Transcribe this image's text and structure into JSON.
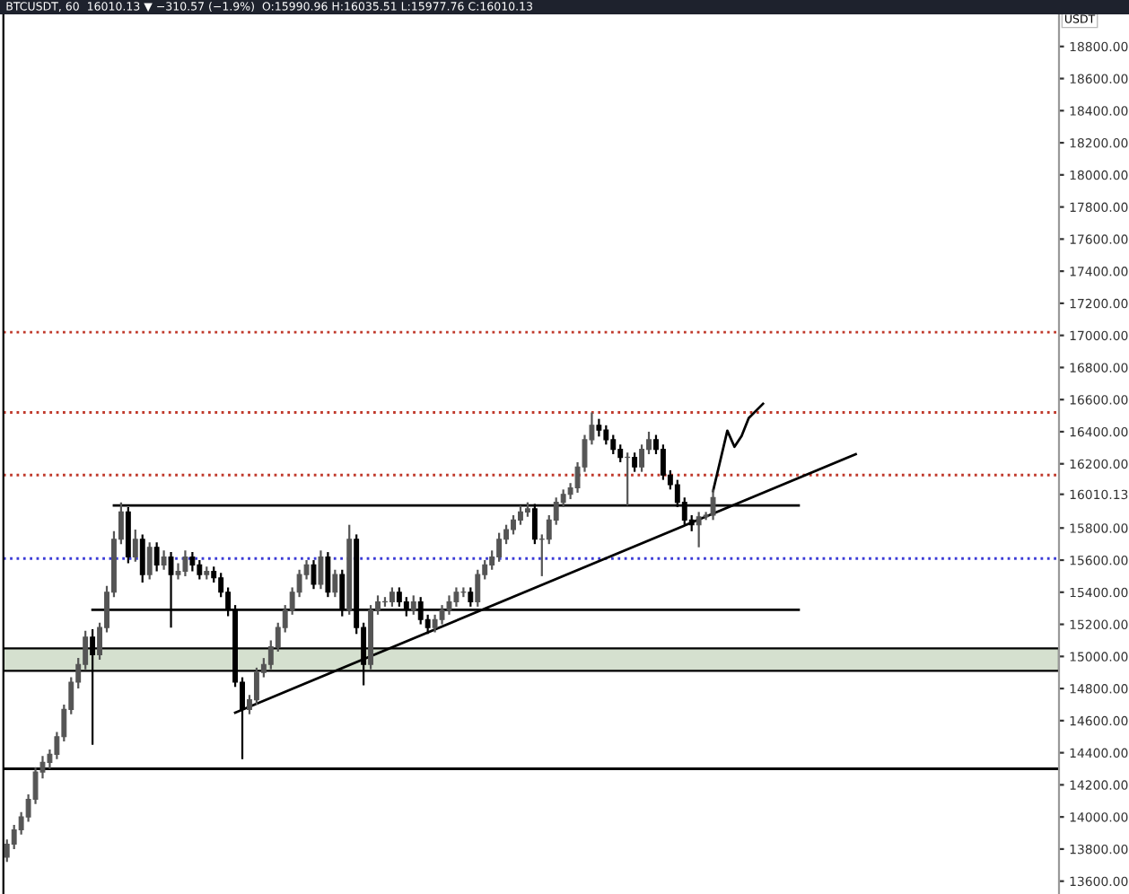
{
  "chart_data": {
    "type": "candlestick",
    "title": "BTCUSDT, 60  16010.13 ▼ −310.57 (−1.9%)  O:15990.96 H:16035.51 L:15977.76 C:16010.13",
    "ylabel": "USDT",
    "categories": [
      null,
      null,
      null,
      null,
      null,
      null,
      null,
      null,
      null,
      null,
      null,
      null,
      null,
      null,
      null,
      null,
      null,
      null,
      null,
      null,
      null,
      null,
      null,
      null,
      null,
      null,
      null,
      null,
      null,
      null,
      null,
      null,
      null,
      null,
      null,
      null,
      null,
      null,
      null,
      null,
      null,
      null,
      null,
      null,
      null,
      null,
      null,
      null,
      null,
      null,
      null,
      null,
      null,
      null,
      null,
      null,
      null,
      null,
      null,
      null,
      null,
      null,
      null,
      null,
      null,
      null,
      null,
      null,
      null,
      null,
      null,
      null,
      null,
      null,
      null,
      null,
      null,
      null,
      null,
      null,
      null,
      null,
      null,
      null,
      null,
      null,
      null,
      null,
      null,
      null,
      null,
      null,
      null,
      null,
      null,
      null,
      null,
      null,
      null,
      null,
      null,
      null,
      null,
      null,
      null,
      null,
      null,
      null,
      null,
      null,
      null,
      null,
      null,
      null,
      null,
      null,
      null,
      null,
      null,
      null,
      null,
      null,
      null,
      null,
      null,
      null,
      null,
      null,
      null,
      null,
      null,
      null,
      null,
      null,
      null,
      null,
      null,
      null,
      null,
      null,
      null,
      null,
      null,
      null,
      null,
      null,
      null,
      null
    ],
    "ohlc": [
      [
        13750,
        13860,
        13720,
        13830
      ],
      [
        13830,
        13950,
        13800,
        13920
      ],
      [
        13920,
        14030,
        13890,
        14000
      ],
      [
        14000,
        14140,
        13970,
        14110
      ],
      [
        14110,
        14310,
        14080,
        14280
      ],
      [
        14280,
        14380,
        14240,
        14340
      ],
      [
        14340,
        14420,
        14300,
        14390
      ],
      [
        14390,
        14530,
        14360,
        14500
      ],
      [
        14500,
        14700,
        14470,
        14670
      ],
      [
        14670,
        14870,
        14640,
        14840
      ],
      [
        14840,
        14990,
        14800,
        14950
      ],
      [
        14950,
        15160,
        14920,
        15120
      ],
      [
        15120,
        15170,
        14450,
        15010
      ],
      [
        15010,
        15210,
        14980,
        15180
      ],
      [
        15180,
        15440,
        15150,
        15400
      ],
      [
        15400,
        15780,
        15370,
        15730
      ],
      [
        15730,
        15960,
        15700,
        15900
      ],
      [
        15900,
        15930,
        15580,
        15620
      ],
      [
        15620,
        15790,
        15590,
        15730
      ],
      [
        15730,
        15760,
        15460,
        15510
      ],
      [
        15510,
        15710,
        15480,
        15680
      ],
      [
        15680,
        15710,
        15530,
        15570
      ],
      [
        15570,
        15660,
        15540,
        15620
      ],
      [
        15620,
        15650,
        15180,
        15510
      ],
      [
        15510,
        15580,
        15480,
        15530
      ],
      [
        15530,
        15660,
        15500,
        15620
      ],
      [
        15620,
        15650,
        15530,
        15570
      ],
      [
        15570,
        15600,
        15480,
        15510
      ],
      [
        15510,
        15560,
        15480,
        15530
      ],
      [
        15530,
        15560,
        15460,
        15490
      ],
      [
        15490,
        15520,
        15370,
        15400
      ],
      [
        15400,
        15430,
        15250,
        15290
      ],
      [
        15290,
        15320,
        14810,
        14840
      ],
      [
        14840,
        14870,
        14360,
        14670
      ],
      [
        14670,
        14760,
        14640,
        14730
      ],
      [
        14730,
        14930,
        14700,
        14900
      ],
      [
        14900,
        14990,
        14870,
        14950
      ],
      [
        14950,
        15100,
        14920,
        15060
      ],
      [
        15060,
        15210,
        15030,
        15180
      ],
      [
        15180,
        15320,
        15150,
        15290
      ],
      [
        15290,
        15430,
        15260,
        15400
      ],
      [
        15400,
        15540,
        15370,
        15510
      ],
      [
        15510,
        15600,
        15480,
        15570
      ],
      [
        15570,
        15600,
        15420,
        15450
      ],
      [
        15450,
        15660,
        15420,
        15620
      ],
      [
        15620,
        15650,
        15370,
        15400
      ],
      [
        15400,
        15540,
        15370,
        15510
      ],
      [
        15510,
        15540,
        15250,
        15290
      ],
      [
        15290,
        15820,
        15260,
        15730
      ],
      [
        15730,
        15760,
        15140,
        15180
      ],
      [
        15180,
        15210,
        14820,
        14950
      ],
      [
        14950,
        15320,
        14920,
        15290
      ],
      [
        15290,
        15380,
        15260,
        15340
      ],
      [
        15340,
        15370,
        15310,
        15340
      ],
      [
        15340,
        15430,
        15310,
        15400
      ],
      [
        15400,
        15430,
        15310,
        15340
      ],
      [
        15340,
        15370,
        15250,
        15290
      ],
      [
        15290,
        15380,
        15260,
        15340
      ],
      [
        15340,
        15370,
        15200,
        15230
      ],
      [
        15230,
        15260,
        15140,
        15180
      ],
      [
        15180,
        15260,
        15150,
        15230
      ],
      [
        15230,
        15320,
        15200,
        15290
      ],
      [
        15290,
        15380,
        15260,
        15340
      ],
      [
        15340,
        15430,
        15310,
        15400
      ],
      [
        15400,
        15430,
        15370,
        15400
      ],
      [
        15400,
        15430,
        15310,
        15340
      ],
      [
        15340,
        15540,
        15310,
        15510
      ],
      [
        15510,
        15600,
        15480,
        15570
      ],
      [
        15570,
        15660,
        15540,
        15620
      ],
      [
        15620,
        15770,
        15590,
        15730
      ],
      [
        15730,
        15820,
        15700,
        15790
      ],
      [
        15790,
        15880,
        15760,
        15850
      ],
      [
        15850,
        15940,
        15820,
        15900
      ],
      [
        15900,
        15960,
        15870,
        15920
      ],
      [
        15920,
        15950,
        15700,
        15730
      ],
      [
        15730,
        15760,
        15500,
        15730
      ],
      [
        15730,
        15880,
        15700,
        15850
      ],
      [
        15850,
        15990,
        15820,
        15960
      ],
      [
        15960,
        16040,
        15930,
        16010
      ],
      [
        16010,
        16080,
        15980,
        16050
      ],
      [
        16050,
        16210,
        16020,
        16180
      ],
      [
        16180,
        16380,
        16150,
        16350
      ],
      [
        16350,
        16520,
        16320,
        16440
      ],
      [
        16440,
        16480,
        16370,
        16410
      ],
      [
        16410,
        16440,
        16320,
        16350
      ],
      [
        16350,
        16380,
        16260,
        16290
      ],
      [
        16290,
        16320,
        16210,
        16240
      ],
      [
        16240,
        16270,
        15940,
        16240
      ],
      [
        16240,
        16270,
        16150,
        16180
      ],
      [
        16180,
        16320,
        16150,
        16290
      ],
      [
        16290,
        16400,
        16260,
        16350
      ],
      [
        16350,
        16380,
        16260,
        16290
      ],
      [
        16290,
        16320,
        16100,
        16130
      ],
      [
        16130,
        16160,
        16040,
        16070
      ],
      [
        16070,
        16100,
        15930,
        15960
      ],
      [
        15960,
        15990,
        15820,
        15850
      ],
      [
        15850,
        15880,
        15780,
        15820
      ],
      [
        15820,
        15900,
        15680,
        15870
      ],
      [
        15870,
        15900,
        15850,
        15880
      ],
      [
        15880,
        16040,
        15850,
        15990
      ],
      null,
      null,
      null,
      null,
      null,
      null,
      null,
      null,
      null,
      null,
      null,
      null,
      null,
      null,
      null,
      null,
      null,
      null,
      null,
      null,
      null,
      null,
      null,
      null,
      null,
      null,
      null,
      null,
      null,
      null,
      null,
      null,
      null,
      null,
      null,
      null,
      null,
      null,
      null,
      null,
      null,
      null,
      null,
      null,
      null,
      null,
      null,
      null
    ],
    "series": [
      {
        "type": "line",
        "color": "#000000",
        "values": [
          null,
          null,
          null,
          null,
          null,
          null,
          null,
          null,
          null,
          null,
          null,
          null,
          null,
          null,
          null,
          null,
          null,
          null,
          null,
          null,
          null,
          null,
          null,
          null,
          null,
          null,
          null,
          null,
          null,
          null,
          null,
          null,
          14650,
          null,
          null,
          null,
          null,
          null,
          null,
          null,
          null,
          null,
          null,
          null,
          null,
          null,
          null,
          null,
          null,
          null,
          null,
          null,
          null,
          null,
          null,
          null,
          null,
          null,
          null,
          null,
          null,
          null,
          null,
          null,
          null,
          null,
          null,
          null,
          null,
          null,
          null,
          null,
          null,
          null,
          null,
          null,
          null,
          null,
          null,
          null,
          null,
          null,
          null,
          null,
          null,
          null,
          null,
          null,
          null,
          null,
          null,
          null,
          null,
          null,
          null,
          null,
          null,
          null,
          null,
          null,
          null,
          null,
          null,
          null,
          null,
          null,
          null,
          null,
          null,
          null,
          null,
          null,
          null,
          null,
          null,
          null,
          null,
          null,
          null,
          16260,
          null,
          null,
          null,
          null,
          null,
          null,
          null,
          null,
          null,
          null,
          null,
          null,
          null,
          null,
          null,
          null,
          null,
          null,
          null,
          null,
          null,
          null,
          null,
          null,
          null,
          null,
          null,
          null
        ]
      },
      {
        "type": "line",
        "color": "#000000",
        "values": [
          null,
          null,
          null,
          null,
          null,
          null,
          null,
          null,
          null,
          null,
          null,
          null,
          null,
          null,
          null,
          null,
          null,
          null,
          null,
          null,
          null,
          null,
          null,
          null,
          null,
          null,
          null,
          null,
          null,
          null,
          null,
          null,
          null,
          null,
          null,
          null,
          null,
          null,
          null,
          null,
          null,
          null,
          null,
          null,
          null,
          null,
          null,
          null,
          null,
          null,
          null,
          null,
          null,
          null,
          null,
          null,
          null,
          null,
          null,
          null,
          null,
          null,
          null,
          null,
          null,
          null,
          null,
          null,
          null,
          null,
          null,
          null,
          null,
          null,
          null,
          null,
          null,
          null,
          null,
          null,
          null,
          null,
          null,
          null,
          null,
          null,
          null,
          null,
          null,
          null,
          null,
          null,
          null,
          null,
          null,
          null,
          null,
          null,
          null,
          16030,
          null,
          16406,
          16306,
          16373,
          16485,
          null,
          16574,
          null,
          null,
          null,
          null,
          null,
          null,
          null,
          null,
          null,
          null,
          null,
          null,
          null,
          null,
          null,
          null,
          null,
          null,
          null,
          null,
          null,
          null,
          null,
          null,
          null,
          null,
          null,
          null,
          null,
          null,
          null,
          null,
          null,
          null,
          null,
          null,
          null,
          null,
          null,
          null,
          null
        ]
      },
      {
        "type": "line",
        "color": "#000000",
        "values": [
          null,
          null,
          null,
          null,
          null,
          null,
          null,
          null,
          null,
          null,
          null,
          null,
          null,
          null,
          null,
          15940,
          null,
          null,
          null,
          null,
          null,
          null,
          null,
          null,
          null,
          null,
          null,
          null,
          null,
          null,
          null,
          null,
          null,
          null,
          null,
          null,
          null,
          null,
          null,
          null,
          null,
          null,
          null,
          null,
          null,
          null,
          null,
          null,
          null,
          null,
          null,
          null,
          null,
          null,
          null,
          null,
          null,
          null,
          null,
          null,
          null,
          null,
          null,
          null,
          null,
          null,
          null,
          null,
          null,
          null,
          null,
          null,
          null,
          null,
          null,
          null,
          null,
          null,
          null,
          null,
          null,
          null,
          null,
          null,
          null,
          null,
          null,
          null,
          null,
          null,
          null,
          null,
          null,
          null,
          null,
          null,
          null,
          null,
          null,
          null,
          null,
          null,
          null,
          null,
          null,
          null,
          null,
          null,
          null,
          null,
          null,
          15940,
          null,
          null,
          null,
          null,
          null,
          null,
          null,
          null,
          null,
          null,
          null,
          null,
          null,
          null,
          null,
          null,
          null,
          null,
          null,
          null,
          null,
          null,
          null,
          null,
          null,
          null,
          null,
          null,
          null,
          null,
          null,
          null,
          null,
          null,
          null,
          null
        ]
      },
      {
        "type": "line",
        "color": "#000000",
        "values": [
          null,
          null,
          null,
          null,
          null,
          null,
          null,
          null,
          null,
          null,
          null,
          null,
          15290,
          null,
          null,
          null,
          null,
          null,
          null,
          null,
          null,
          null,
          null,
          null,
          null,
          null,
          null,
          null,
          null,
          null,
          null,
          null,
          null,
          null,
          null,
          null,
          null,
          null,
          null,
          null,
          null,
          null,
          null,
          null,
          null,
          null,
          null,
          null,
          null,
          null,
          null,
          null,
          null,
          null,
          null,
          null,
          null,
          null,
          null,
          null,
          null,
          null,
          null,
          null,
          null,
          null,
          null,
          null,
          null,
          null,
          null,
          null,
          null,
          null,
          null,
          null,
          null,
          null,
          null,
          null,
          null,
          null,
          null,
          null,
          null,
          null,
          null,
          null,
          null,
          null,
          null,
          null,
          null,
          null,
          null,
          null,
          null,
          null,
          null,
          null,
          null,
          null,
          null,
          null,
          null,
          null,
          null,
          null,
          null,
          null,
          null,
          15290,
          null,
          null,
          null,
          null,
          null,
          null,
          null,
          null,
          null,
          null,
          null,
          null,
          null,
          null,
          null,
          null,
          null,
          null,
          null,
          null,
          null,
          null,
          null,
          null,
          null,
          null,
          null,
          null,
          null,
          null,
          null,
          null,
          null,
          null,
          null,
          null
        ]
      }
    ],
    "ref_lines": [
      {
        "axis": "y",
        "value": 17020,
        "color": "#c0392b",
        "line_style": "dotted"
      },
      {
        "axis": "y",
        "value": 16520,
        "color": "#c0392b",
        "line_style": "dotted"
      },
      {
        "axis": "y",
        "value": 16130,
        "color": "#c0392b",
        "line_style": "dotted"
      },
      {
        "axis": "y",
        "value": 15610,
        "color": "#3b3bd6",
        "line_style": "dotted"
      },
      {
        "axis": "y",
        "value": 14300,
        "color": "#000000",
        "line_style": "solid"
      }
    ],
    "bands": [
      {
        "axis": "y",
        "from": 14910,
        "to": 15050,
        "color": "#d5e0cf"
      }
    ],
    "ylim": [
      13520,
      19000
    ],
    "yticks": [
      {
        "value": 18800,
        "label": "18800.00"
      },
      {
        "value": 18600,
        "label": "18600.00"
      },
      {
        "value": 18400,
        "label": "18400.00"
      },
      {
        "value": 18200,
        "label": "18200.00"
      },
      {
        "value": 18000,
        "label": "18000.00"
      },
      {
        "value": 17800,
        "label": "17800.00"
      },
      {
        "value": 17600,
        "label": "17600.00"
      },
      {
        "value": 17400,
        "label": "17400.00"
      },
      {
        "value": 17200,
        "label": "17200.00"
      },
      {
        "value": 17000,
        "label": "17000.00"
      },
      {
        "value": 16800,
        "label": "16800.00"
      },
      {
        "value": 16600,
        "label": "16600.00"
      },
      {
        "value": 16400,
        "label": "16400.00"
      },
      {
        "value": 16200,
        "label": "16200.00"
      },
      {
        "value": 16010.13,
        "label": "16010.13"
      },
      {
        "value": 15800,
        "label": "15800.00"
      },
      {
        "value": 15600,
        "label": "15600.00"
      },
      {
        "value": 15400,
        "label": "15400.00"
      },
      {
        "value": 15200,
        "label": "15200.00"
      },
      {
        "value": 15000,
        "label": "15000.00"
      },
      {
        "value": 14800,
        "label": "14800.00"
      },
      {
        "value": 14600,
        "label": "14600.00"
      },
      {
        "value": 14400,
        "label": "14400.00"
      },
      {
        "value": 14200,
        "label": "14200.00"
      },
      {
        "value": 14000,
        "label": "14000.00"
      },
      {
        "value": 13800,
        "label": "13800.00"
      },
      {
        "value": 13600,
        "label": "13600.00"
      }
    ],
    "tick_labels": "y",
    "grid": false
  }
}
